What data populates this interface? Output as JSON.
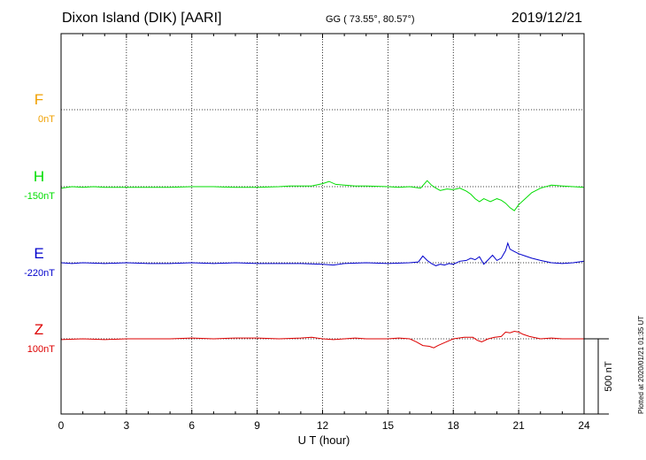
{
  "header": {
    "station": "Dixon Island (DIK)  [AARI]",
    "coords": "GG ( 73.55°,  80.57°)",
    "date": "2019/12/21"
  },
  "plotted": "Plotted at 2020/01/21 01:35 UT",
  "chart_data": {
    "type": "line",
    "title": "Dixon Island (DIK)  [AARI]",
    "xlabel": "U T (hour)",
    "xlim": [
      0,
      24
    ],
    "xticks": [
      "0",
      "3",
      "6",
      "9",
      "12",
      "15",
      "18",
      "21",
      "24"
    ],
    "grid": true,
    "scale_bar": {
      "label": "500 nT",
      "value_nT": 500
    },
    "series": [
      {
        "name": "F",
        "offset_label": "0nT",
        "color": "#f0a000",
        "x": [],
        "y": []
      },
      {
        "name": "H",
        "offset_label": "-150nT",
        "color": "#00dd00",
        "x": [
          0,
          0.5,
          1,
          1.5,
          2,
          3,
          4,
          5,
          6,
          7,
          8,
          9,
          10,
          10.5,
          11,
          11.5,
          12,
          12.3,
          12.6,
          13,
          13.5,
          14,
          15,
          15.5,
          16,
          16.5,
          16.8,
          17.0,
          17.2,
          17.4,
          17.7,
          18.0,
          18.3,
          18.6,
          18.8,
          19.0,
          19.2,
          19.4,
          19.7,
          20.0,
          20.2,
          20.4,
          20.6,
          20.8,
          21.0,
          21.3,
          21.6,
          22.0,
          22.5,
          23.0,
          23.5,
          24.0
        ],
        "y": [
          -10,
          0,
          -5,
          0,
          -5,
          -5,
          -5,
          -5,
          0,
          0,
          -5,
          -5,
          0,
          5,
          5,
          5,
          20,
          35,
          15,
          10,
          5,
          5,
          0,
          -5,
          0,
          -10,
          40,
          10,
          -10,
          -25,
          -15,
          -20,
          -10,
          -30,
          -50,
          -80,
          -100,
          -80,
          -100,
          -80,
          -90,
          -110,
          -140,
          -160,
          -120,
          -80,
          -40,
          -10,
          10,
          5,
          0,
          -5
        ]
      },
      {
        "name": "E",
        "offset_label": "-220nT",
        "color": "#0000cc",
        "x": [
          0,
          0.5,
          1,
          2,
          3,
          4,
          5,
          6,
          7,
          8,
          9,
          10,
          11,
          12,
          12.5,
          13,
          14,
          15,
          16,
          16.4,
          16.6,
          16.8,
          17.0,
          17.2,
          17.4,
          17.6,
          17.8,
          18.0,
          18.3,
          18.6,
          18.8,
          19.0,
          19.2,
          19.4,
          19.6,
          19.8,
          20.0,
          20.2,
          20.4,
          20.5,
          20.6,
          20.8,
          21.0,
          21.3,
          21.6,
          22.0,
          22.5,
          23.0,
          23.5,
          24.0
        ],
        "y": [
          0,
          -5,
          0,
          -5,
          0,
          -5,
          -5,
          0,
          -5,
          0,
          -5,
          -5,
          -5,
          -10,
          -15,
          -5,
          0,
          -5,
          0,
          5,
          45,
          15,
          -5,
          -20,
          -10,
          -15,
          -5,
          -10,
          10,
          15,
          30,
          20,
          40,
          -10,
          20,
          50,
          15,
          30,
          80,
          130,
          90,
          75,
          60,
          45,
          30,
          15,
          0,
          -5,
          0,
          10
        ]
      },
      {
        "name": "Z",
        "offset_label": "100nT",
        "color": "#dd0000",
        "x": [
          0,
          1,
          2,
          3,
          4,
          5,
          6,
          7,
          8,
          9,
          10,
          11,
          11.5,
          12,
          12.5,
          13,
          13.5,
          14,
          15,
          15.5,
          16,
          16.3,
          16.6,
          16.9,
          17.1,
          17.3,
          17.6,
          18.0,
          18.5,
          18.9,
          19.1,
          19.3,
          19.6,
          19.9,
          20.2,
          20.4,
          20.6,
          20.8,
          21.0,
          21.2,
          21.5,
          22.0,
          22.5,
          23.0,
          24.0
        ],
        "y": [
          -5,
          0,
          -5,
          0,
          0,
          0,
          5,
          0,
          5,
          5,
          0,
          5,
          10,
          0,
          -5,
          0,
          5,
          0,
          0,
          5,
          0,
          -20,
          -45,
          -50,
          -60,
          -45,
          -25,
          0,
          10,
          10,
          -10,
          -20,
          0,
          10,
          15,
          45,
          40,
          50,
          45,
          30,
          15,
          0,
          5,
          0,
          0
        ]
      }
    ]
  }
}
